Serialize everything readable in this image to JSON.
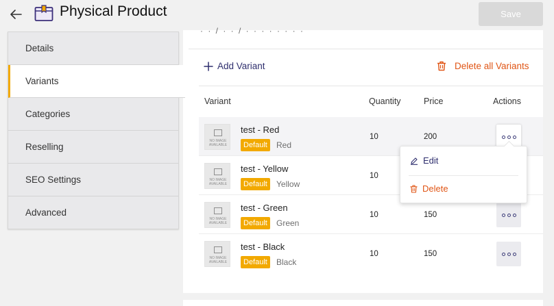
{
  "header": {
    "title": "Physical Product",
    "save_label": "Save"
  },
  "sidebar": {
    "items": [
      {
        "label": "Details",
        "active": false
      },
      {
        "label": "Variants",
        "active": true
      },
      {
        "label": "Categories",
        "active": false
      },
      {
        "label": "Reselling",
        "active": false
      },
      {
        "label": "SEO Settings",
        "active": false
      },
      {
        "label": "Advanced",
        "active": false
      }
    ]
  },
  "panel": {
    "cut_text": "· · / · · / · · · · · · · ·",
    "add_variant_label": "Add Variant",
    "delete_all_label": "Delete all Variants"
  },
  "table": {
    "headers": {
      "variant": "Variant",
      "quantity": "Quantity",
      "price": "Price",
      "actions": "Actions"
    },
    "no_image_text": "NO IMAGE AVAILABLE",
    "rows": [
      {
        "name": "test - Red",
        "badge": "Default",
        "color": "Red",
        "quantity": "10",
        "price": "200"
      },
      {
        "name": "test - Yellow",
        "badge": "Default",
        "color": "Yellow",
        "quantity": "10",
        "price": ""
      },
      {
        "name": "test - Green",
        "badge": "Default",
        "color": "Green",
        "quantity": "10",
        "price": "150"
      },
      {
        "name": "test - Black",
        "badge": "Default",
        "color": "Black",
        "quantity": "10",
        "price": "150"
      }
    ]
  },
  "dropdown": {
    "edit_label": "Edit",
    "delete_label": "Delete"
  },
  "colors": {
    "accent": "#f2a900",
    "danger": "#e05515",
    "primary_text": "#2f2f6e",
    "save_disabled": "#d9d9d9"
  },
  "icons": {
    "back": "arrow-left-icon",
    "product": "box-icon",
    "add": "plus-icon",
    "trash": "trash-icon",
    "more": "ellipsis-icon",
    "edit": "pencil-icon",
    "no_image": "image-placeholder-icon"
  }
}
